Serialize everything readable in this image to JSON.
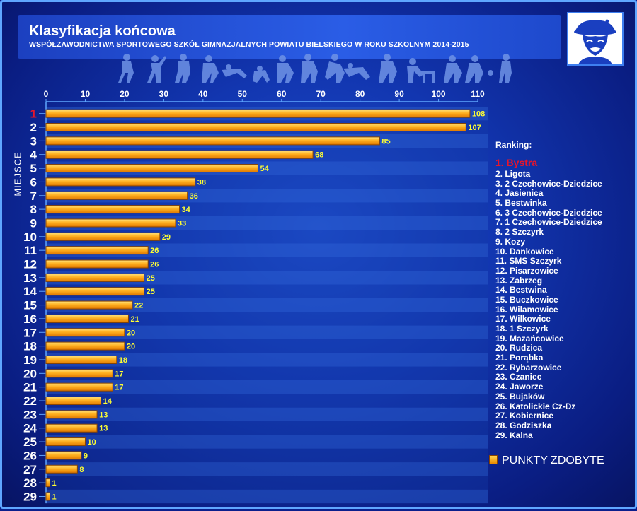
{
  "header": {
    "title": "Klasyfikacja końcowa",
    "subtitle": "WSPÓŁZAWODNICTWA SPORTOWEGO SZKÓŁ GIMNAZJALNYCH POWIATU BIELSKIEGO W ROKU SZKOLNYM 2014-2015"
  },
  "colors": {
    "background": "#1236b0",
    "bar_fill_top": "#ffd34d",
    "bar_fill_bottom": "#e98a00",
    "bar_border": "#8a4500",
    "value_label": "#ffff33",
    "first_place": "#e8152b",
    "axis": "#5fa6ff"
  },
  "icons": [
    "portrait-logo-icon",
    "athlete-silhouettes-icon"
  ],
  "ranking": {
    "title": "Ranking:",
    "items": [
      "1. Bystra",
      "2. Ligota",
      "3. 2 Czechowice-Dziedzice",
      "4. Jasienica",
      "5. Bestwinka",
      "6. 3 Czechowice-Dziedzice",
      "7. 1 Czechowice-Dziedzice",
      "8. 2 Szczyrk",
      "9. Kozy",
      "10. Dankowice",
      "11. SMS Szczyrk",
      "12. Pisarzowice",
      "13. Zabrzeg",
      "14. Bestwina",
      "15. Buczkowice",
      "16. Wilamowice",
      "17. Wilkowice",
      "18. 1 Szczyrk",
      "19. Mazańcowice",
      "20. Rudzica",
      "21. Porąbka",
      "22. Rybarzowice",
      "23. Czaniec",
      "24. Jaworze",
      "25. Bujaków",
      "26. Katolickie Cz-Dz",
      "27. Kobiernice",
      "28. Godziszka",
      "29. Kalna"
    ]
  },
  "chart_data": {
    "type": "bar",
    "orientation": "horizontal",
    "ylabel": "MIEJSCE",
    "xlabel": "",
    "xlim": [
      0,
      110
    ],
    "x_ticks": [
      "0",
      "10",
      "20",
      "30",
      "40",
      "50",
      "60",
      "70",
      "80",
      "90",
      "100",
      "110"
    ],
    "categories": [
      "1",
      "2",
      "3",
      "4",
      "5",
      "6",
      "7",
      "8",
      "9",
      "10",
      "11",
      "12",
      "13",
      "14",
      "15",
      "16",
      "17",
      "18",
      "19",
      "20",
      "21",
      "22",
      "23",
      "24",
      "25",
      "26",
      "27",
      "28",
      "29"
    ],
    "series": [
      {
        "name": "PUNKTY ZDOBYTE",
        "values": [
          108,
          107,
          85,
          68,
          54,
          38,
          36,
          34,
          33,
          29,
          26,
          26,
          25,
          25,
          22,
          21,
          20,
          20,
          18,
          17,
          17,
          14,
          13,
          13,
          10,
          9,
          8,
          1,
          1
        ]
      }
    ],
    "legend": "right",
    "data_labels": true,
    "grid": false
  }
}
